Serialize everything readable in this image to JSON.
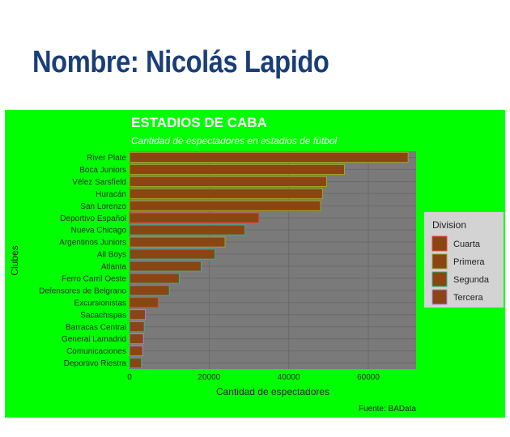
{
  "page": {
    "heading": "Nombre: Nicolás Lapido"
  },
  "colors": {
    "background": "#00ff00",
    "panel": "#7a7a7a",
    "bar_fill": "#8b4513",
    "title_text": "#ffffff",
    "legend_bg": "#d3d3d3"
  },
  "chart_data": {
    "type": "bar",
    "orientation": "horizontal",
    "title": "ESTADIOS DE CABA",
    "subtitle": "Cantidad de espectadores en estadios de fútbol",
    "xlabel": "Cantidad de espectadores",
    "ylabel": "Clubes",
    "caption": "Fuente: BAData",
    "xlim": [
      0,
      72000
    ],
    "x_ticks": [
      0,
      20000,
      40000,
      60000
    ],
    "x_tick_labels": [
      "0",
      "20000",
      "40000",
      "60000"
    ],
    "grid": true,
    "legend": {
      "title": "Division",
      "position": "right",
      "entries": [
        {
          "label": "Cuarta",
          "border": "#e8473f"
        },
        {
          "label": "Primera",
          "border": "#9aa828"
        },
        {
          "label": "Segunda",
          "border": "#2fb58e"
        },
        {
          "label": "Tercera",
          "border": "#b07de0"
        }
      ]
    },
    "categories": [
      "River Plate",
      "Boca Juniors",
      "Vélez Sarsfield",
      "Huracán",
      "San Lorenzo",
      "Deportivo Español",
      "Nueva Chicago",
      "Argentinos Juniors",
      "All Boys",
      "Atlanta",
      "Ferro Carril Oeste",
      "Defensores de Belgrano",
      "Excursionistas",
      "Sacachispas",
      "Barracas Central",
      "General Lamadrid",
      "Comunicaciones",
      "Deportivo Riestra"
    ],
    "values": [
      70000,
      54000,
      49500,
      48500,
      48000,
      32500,
      29000,
      24000,
      21500,
      18000,
      12500,
      10000,
      7200,
      4000,
      3700,
      3500,
      3300,
      3000
    ],
    "division": [
      "Primera",
      "Primera",
      "Primera",
      "Primera",
      "Primera",
      "Cuarta",
      "Segunda",
      "Primera",
      "Segunda",
      "Segunda",
      "Segunda",
      "Segunda",
      "Cuarta",
      "Tercera",
      "Segunda",
      "Tercera",
      "Tercera",
      "Segunda"
    ]
  }
}
